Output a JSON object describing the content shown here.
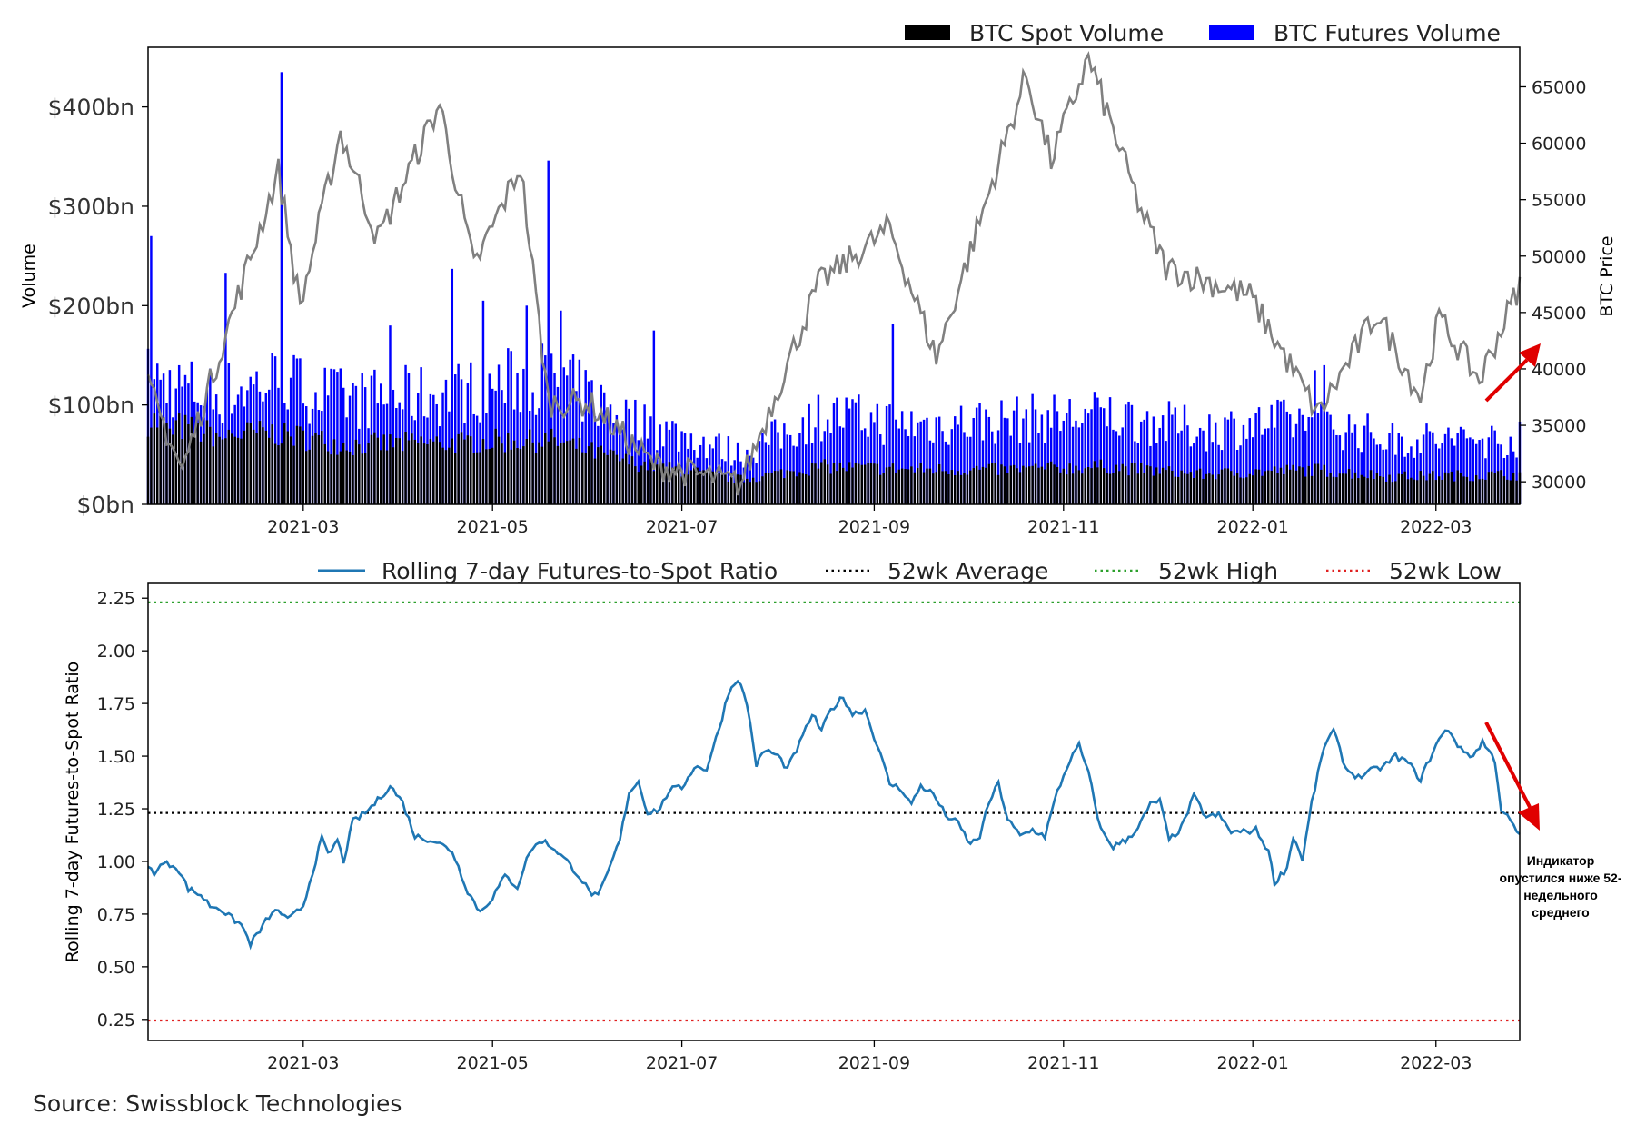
{
  "source": "Source: Swissblock Technologies",
  "annotation": {
    "text": "Индикатор опустился ниже 52-недельного среднего",
    "color": "#e00000"
  },
  "chart_data": [
    {
      "type": "bar",
      "xlabel": "",
      "ylabel": "Volume",
      "y2label": "BTC Price",
      "x_range": [
        "2021-01-10",
        "2022-03-28"
      ],
      "ylim": [
        0,
        460
      ],
      "y2lim": [
        28000,
        68500
      ],
      "x_ticks": [
        "2021-03",
        "2021-05",
        "2021-07",
        "2021-09",
        "2021-11",
        "2022-01",
        "2022-03"
      ],
      "y_ticks": [
        "$0bn",
        "$100bn",
        "$200bn",
        "$300bn",
        "$400bn"
      ],
      "y_tick_values": [
        0,
        100,
        200,
        300,
        400
      ],
      "y2_ticks": [
        30000,
        35000,
        40000,
        45000,
        50000,
        55000,
        60000,
        65000
      ],
      "legend": [
        "BTC Spot Volume",
        "BTC Futures Volume"
      ],
      "legend_position": "top-right",
      "colors": {
        "spot": "#000000",
        "futures": "#0000ff",
        "price": "#808080"
      },
      "spot_volume_bn": [
        [
          "2021-01-10",
          85
        ],
        [
          "2021-02-01",
          70
        ],
        [
          "2021-02-20",
          72
        ],
        [
          "2021-03-15",
          60
        ],
        [
          "2021-04-15",
          62
        ],
        [
          "2021-05-19",
          65
        ],
        [
          "2021-06-15",
          42
        ],
        [
          "2021-07-20",
          25
        ],
        [
          "2021-08-15",
          38
        ],
        [
          "2021-09-15",
          35
        ],
        [
          "2021-10-15",
          35
        ],
        [
          "2021-11-15",
          38
        ],
        [
          "2021-12-15",
          30
        ],
        [
          "2022-01-20",
          35
        ],
        [
          "2022-02-15",
          28
        ],
        [
          "2022-03-28",
          30
        ]
      ],
      "futures_volume_bn": [
        [
          "2021-01-10",
          125
        ],
        [
          "2021-02-01",
          110
        ],
        [
          "2021-02-20",
          125
        ],
        [
          "2021-03-15",
          105
        ],
        [
          "2021-04-15",
          110
        ],
        [
          "2021-05-19",
          130
        ],
        [
          "2021-06-15",
          85
        ],
        [
          "2021-07-20",
          50
        ],
        [
          "2021-08-15",
          90
        ],
        [
          "2021-09-15",
          80
        ],
        [
          "2021-10-15",
          85
        ],
        [
          "2021-11-15",
          90
        ],
        [
          "2021-12-15",
          75
        ],
        [
          "2022-01-20",
          85
        ],
        [
          "2022-02-15",
          65
        ],
        [
          "2022-03-28",
          65
        ]
      ],
      "volume_spikes_bn": [
        [
          "2021-01-11",
          270
        ],
        [
          "2021-02-04",
          233
        ],
        [
          "2021-02-22",
          435
        ],
        [
          "2021-03-29",
          180
        ],
        [
          "2021-04-18",
          237
        ],
        [
          "2021-04-28",
          205
        ],
        [
          "2021-05-12",
          200
        ],
        [
          "2021-05-19",
          346
        ],
        [
          "2021-05-23",
          195
        ],
        [
          "2021-06-22",
          175
        ],
        [
          "2021-09-07",
          182
        ],
        [
          "2022-01-21",
          135
        ],
        [
          "2022-01-24",
          140
        ]
      ],
      "btc_price": [
        [
          "2021-01-10",
          38500
        ],
        [
          "2021-01-21",
          31000
        ],
        [
          "2021-02-08",
          46500
        ],
        [
          "2021-02-21",
          57500
        ],
        [
          "2021-02-28",
          45500
        ],
        [
          "2021-03-13",
          61000
        ],
        [
          "2021-03-25",
          51500
        ],
        [
          "2021-04-14",
          63500
        ],
        [
          "2021-04-25",
          49000
        ],
        [
          "2021-05-10",
          58000
        ],
        [
          "2021-05-19",
          37000
        ],
        [
          "2021-06-01",
          37000
        ],
        [
          "2021-06-22",
          31500
        ],
        [
          "2021-07-20",
          29800
        ],
        [
          "2021-08-14",
          47500
        ],
        [
          "2021-09-06",
          52500
        ],
        [
          "2021-09-21",
          41000
        ],
        [
          "2021-10-20",
          66000
        ],
        [
          "2021-10-28",
          58500
        ],
        [
          "2021-11-09",
          67500
        ],
        [
          "2021-11-26",
          54000
        ],
        [
          "2021-12-04",
          49000
        ],
        [
          "2021-12-31",
          46500
        ],
        [
          "2022-01-22",
          36000
        ],
        [
          "2022-02-10",
          45000
        ],
        [
          "2022-02-24",
          37500
        ],
        [
          "2022-03-02",
          44500
        ],
        [
          "2022-03-15",
          39000
        ],
        [
          "2022-03-28",
          47500
        ]
      ]
    },
    {
      "type": "line",
      "xlabel": "",
      "ylabel": "Rolling 7-day Futures-to-Spot Ratio",
      "x_range": [
        "2021-01-10",
        "2022-03-28"
      ],
      "ylim": [
        0.15,
        2.32
      ],
      "x_ticks": [
        "2021-03",
        "2021-05",
        "2021-07",
        "2021-09",
        "2021-11",
        "2022-01",
        "2022-03"
      ],
      "y_ticks": [
        0.25,
        0.5,
        0.75,
        1.0,
        1.25,
        1.5,
        1.75,
        2.0,
        2.25
      ],
      "legend_position": "top-right",
      "series": [
        {
          "name": "Rolling 7-day Futures-to-Spot Ratio",
          "color": "#1f77b4",
          "points": [
            [
              "2021-01-10",
              0.97
            ],
            [
              "2021-01-12",
              0.95
            ],
            [
              "2021-01-15",
              0.99
            ],
            [
              "2021-01-19",
              0.98
            ],
            [
              "2021-01-23",
              0.87
            ],
            [
              "2021-01-27",
              0.84
            ],
            [
              "2021-01-30",
              0.79
            ],
            [
              "2021-02-02",
              0.78
            ],
            [
              "2021-02-05",
              0.74
            ],
            [
              "2021-02-09",
              0.7
            ],
            [
              "2021-02-12",
              0.61
            ],
            [
              "2021-02-15",
              0.67
            ],
            [
              "2021-02-18",
              0.74
            ],
            [
              "2021-02-21",
              0.77
            ],
            [
              "2021-02-24",
              0.72
            ],
            [
              "2021-02-27",
              0.76
            ],
            [
              "2021-03-01",
              0.79
            ],
            [
              "2021-03-04",
              0.95
            ],
            [
              "2021-03-07",
              1.11
            ],
            [
              "2021-03-09",
              1.03
            ],
            [
              "2021-03-12",
              1.1
            ],
            [
              "2021-03-14",
              1.0
            ],
            [
              "2021-03-17",
              1.19
            ],
            [
              "2021-03-21",
              1.23
            ],
            [
              "2021-03-25",
              1.29
            ],
            [
              "2021-03-29",
              1.36
            ],
            [
              "2021-04-02",
              1.28
            ],
            [
              "2021-04-06",
              1.12
            ],
            [
              "2021-04-12",
              1.1
            ],
            [
              "2021-04-18",
              1.05
            ],
            [
              "2021-04-23",
              0.86
            ],
            [
              "2021-04-27",
              0.76
            ],
            [
              "2021-05-01",
              0.83
            ],
            [
              "2021-05-05",
              0.93
            ],
            [
              "2021-05-09",
              0.88
            ],
            [
              "2021-05-13",
              1.05
            ],
            [
              "2021-05-17",
              1.1
            ],
            [
              "2021-05-21",
              1.06
            ],
            [
              "2021-05-25",
              1.0
            ],
            [
              "2021-05-29",
              0.93
            ],
            [
              "2021-06-01",
              0.86
            ],
            [
              "2021-06-04",
              0.83
            ],
            [
              "2021-06-07",
              0.94
            ],
            [
              "2021-06-11",
              1.1
            ],
            [
              "2021-06-14",
              1.33
            ],
            [
              "2021-06-17",
              1.38
            ],
            [
              "2021-06-20",
              1.23
            ],
            [
              "2021-06-24",
              1.25
            ],
            [
              "2021-06-27",
              1.34
            ],
            [
              "2021-07-01",
              1.35
            ],
            [
              "2021-07-05",
              1.45
            ],
            [
              "2021-07-09",
              1.44
            ],
            [
              "2021-07-13",
              1.63
            ],
            [
              "2021-07-16",
              1.8
            ],
            [
              "2021-07-19",
              1.87
            ],
            [
              "2021-07-22",
              1.75
            ],
            [
              "2021-07-25",
              1.46
            ],
            [
              "2021-07-28",
              1.53
            ],
            [
              "2021-08-01",
              1.5
            ],
            [
              "2021-08-04",
              1.44
            ],
            [
              "2021-08-08",
              1.56
            ],
            [
              "2021-08-12",
              1.7
            ],
            [
              "2021-08-15",
              1.62
            ],
            [
              "2021-08-18",
              1.72
            ],
            [
              "2021-08-22",
              1.78
            ],
            [
              "2021-08-25",
              1.7
            ],
            [
              "2021-08-29",
              1.72
            ],
            [
              "2021-09-02",
              1.55
            ],
            [
              "2021-09-06",
              1.37
            ],
            [
              "2021-09-10",
              1.34
            ],
            [
              "2021-09-13",
              1.27
            ],
            [
              "2021-09-16",
              1.36
            ],
            [
              "2021-09-20",
              1.32
            ],
            [
              "2021-09-24",
              1.22
            ],
            [
              "2021-09-28",
              1.18
            ],
            [
              "2021-10-02",
              1.08
            ],
            [
              "2021-10-05",
              1.12
            ],
            [
              "2021-10-08",
              1.28
            ],
            [
              "2021-10-11",
              1.37
            ],
            [
              "2021-10-14",
              1.2
            ],
            [
              "2021-10-18",
              1.12
            ],
            [
              "2021-10-22",
              1.15
            ],
            [
              "2021-10-26",
              1.12
            ],
            [
              "2021-10-30",
              1.33
            ],
            [
              "2021-11-03",
              1.48
            ],
            [
              "2021-11-06",
              1.55
            ],
            [
              "2021-11-09",
              1.42
            ],
            [
              "2021-11-13",
              1.15
            ],
            [
              "2021-11-17",
              1.07
            ],
            [
              "2021-11-21",
              1.1
            ],
            [
              "2021-11-25",
              1.16
            ],
            [
              "2021-11-29",
              1.27
            ],
            [
              "2021-12-02",
              1.29
            ],
            [
              "2021-12-05",
              1.1
            ],
            [
              "2021-12-09",
              1.16
            ],
            [
              "2021-12-13",
              1.31
            ],
            [
              "2021-12-17",
              1.21
            ],
            [
              "2021-12-21",
              1.22
            ],
            [
              "2021-12-25",
              1.14
            ],
            [
              "2021-12-29",
              1.14
            ],
            [
              "2022-01-02",
              1.15
            ],
            [
              "2022-01-06",
              1.05
            ],
            [
              "2022-01-08",
              0.9
            ],
            [
              "2022-01-12",
              0.97
            ],
            [
              "2022-01-14",
              1.12
            ],
            [
              "2022-01-17",
              1.01
            ],
            [
              "2022-01-20",
              1.28
            ],
            [
              "2022-01-24",
              1.55
            ],
            [
              "2022-01-27",
              1.62
            ],
            [
              "2022-01-31",
              1.44
            ],
            [
              "2022-02-04",
              1.4
            ],
            [
              "2022-02-08",
              1.43
            ],
            [
              "2022-02-12",
              1.45
            ],
            [
              "2022-02-16",
              1.5
            ],
            [
              "2022-02-20",
              1.47
            ],
            [
              "2022-02-24",
              1.39
            ],
            [
              "2022-02-28",
              1.52
            ],
            [
              "2022-03-02",
              1.58
            ],
            [
              "2022-03-05",
              1.63
            ],
            [
              "2022-03-09",
              1.53
            ],
            [
              "2022-03-13",
              1.5
            ],
            [
              "2022-03-16",
              1.57
            ],
            [
              "2022-03-20",
              1.48
            ],
            [
              "2022-03-22",
              1.25
            ],
            [
              "2022-03-25",
              1.19
            ],
            [
              "2022-03-28",
              1.12
            ]
          ]
        },
        {
          "name": "52wk Average",
          "color": "#000000",
          "style": "dotted",
          "value": 1.23
        },
        {
          "name": "52wk High",
          "color": "#2ca02c",
          "style": "dotted",
          "value": 2.23
        },
        {
          "name": "52wk Low",
          "color": "#e02020",
          "style": "dotted",
          "value": 0.245
        }
      ]
    }
  ]
}
